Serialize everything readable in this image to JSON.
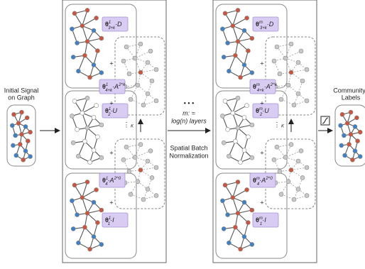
{
  "input": {
    "lines": [
      "Initial Signal",
      "on Graph"
    ]
  },
  "output": {
    "lines": [
      "Community",
      "Labels"
    ]
  },
  "middle": {
    "dots": "• • •",
    "layers": [
      "m: =",
      "log(n) layers"
    ],
    "bn": [
      "Spatial Batch",
      "Normalization"
    ]
  },
  "panels": [
    {
      "plus": "+",
      "kappa": "K",
      "vdots": "⋮",
      "terms": [
        {
          "theta": "θ",
          "sup": "1",
          "sub": "3+k",
          "term": "·D"
        },
        {
          "theta": "θ",
          "sup": "1",
          "sub": "4+k",
          "term": "·A",
          "term_sup": "2^k"
        },
        {
          "theta": "θ",
          "sup": "1",
          "sub": "2",
          "term": "·U"
        },
        {
          "theta": "θ",
          "sup": "1",
          "sub": "4",
          "term": "·A",
          "term_sup": "2^0"
        },
        {
          "theta": "θ",
          "sup": "1",
          "sub": "1",
          "term": "·I"
        }
      ]
    },
    {
      "plus": "+",
      "kappa": "K",
      "vdots": "⋮",
      "terms": [
        {
          "theta": "θ",
          "sup": "m",
          "sub": "3+k",
          "term": "·D"
        },
        {
          "theta": "θ",
          "sup": "m",
          "sub": "4+k",
          "term": "·A",
          "term_sup": "2^k"
        },
        {
          "theta": "θ",
          "sup": "m",
          "sub": "2",
          "term": "·U"
        },
        {
          "theta": "θ",
          "sup": "m",
          "sub": "4",
          "term": "·A",
          "term_sup": "2^0"
        },
        {
          "theta": "θ",
          "sup": "m",
          "sub": "1",
          "term": "·I"
        }
      ]
    }
  ]
}
